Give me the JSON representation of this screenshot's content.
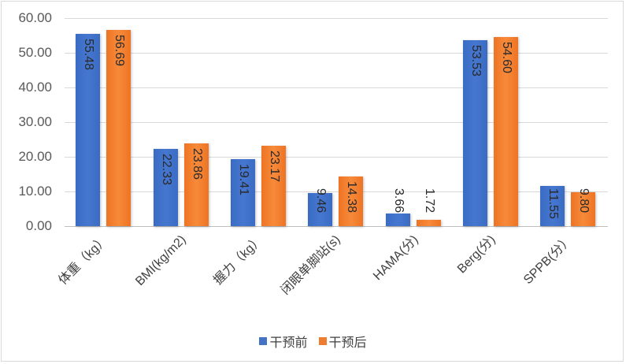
{
  "chart_data": {
    "type": "bar",
    "title": "",
    "xlabel": "",
    "ylabel": "",
    "ylim": [
      0,
      60
    ],
    "yticks": [
      "0.00",
      "10.00",
      "20.00",
      "30.00",
      "40.00",
      "50.00",
      "60.00"
    ],
    "grid": true,
    "legend_position": "bottom",
    "categories": [
      "体重（kg）",
      "BMI(kg/m2)",
      "握力（kg）",
      "闭眼单脚站(s)",
      "HAMA(分)",
      "Berg(分)",
      "SPPB(分）"
    ],
    "series": [
      {
        "name": "干预前",
        "color": "#4472c4",
        "values": [
          55.48,
          22.33,
          19.41,
          9.46,
          3.66,
          53.53,
          11.55
        ],
        "labels": [
          "55.48",
          "22.33",
          "19.41",
          "9.46",
          "3.66",
          "53.53",
          "11.55"
        ]
      },
      {
        "name": "干预后",
        "color": "#ed7d31",
        "values": [
          56.69,
          23.86,
          23.17,
          14.38,
          1.72,
          54.6,
          9.8
        ],
        "labels": [
          "56.69",
          "23.86",
          "23.17",
          "14.38",
          "1.72",
          "54.60",
          "9.80"
        ]
      }
    ]
  },
  "legend": {
    "items": [
      {
        "label": "干预前",
        "color": "#4472c4"
      },
      {
        "label": "干预后",
        "color": "#ed7d31"
      }
    ]
  }
}
